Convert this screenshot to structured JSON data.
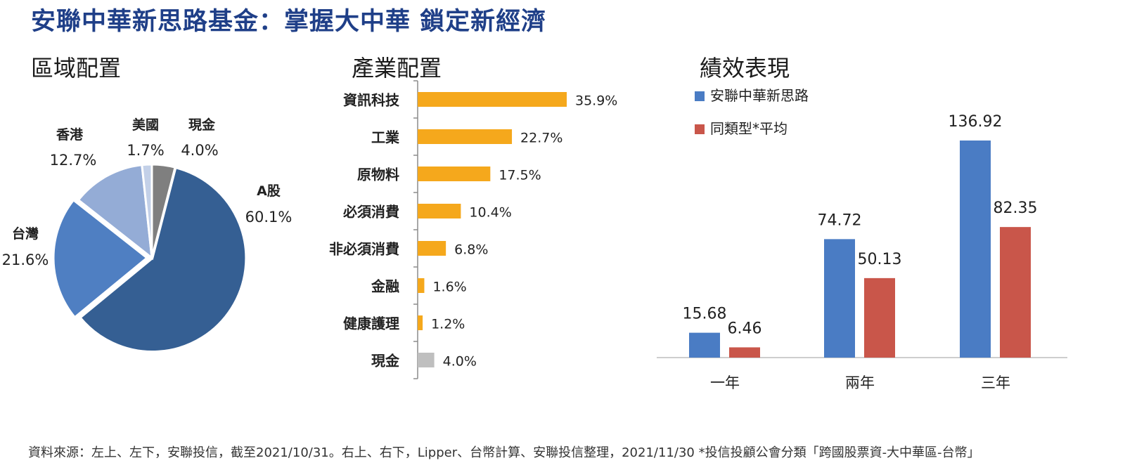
{
  "title": "安聯中華新思路基金：掌握大中華  鎖定新經濟",
  "sections": {
    "region": "區域配置",
    "industry": "產業配置",
    "performance": "績效表現"
  },
  "colors": {
    "title": "#1f3f88",
    "a_share": "#355f93",
    "taiwan": "#4f7fc2",
    "hongkong": "#94acd6",
    "usa": "#c3d0e8",
    "cash": "#7f7f7f",
    "industry_bar": "#f5a81c",
    "industry_cash_bar": "#bfbfbf",
    "fund_series": "#4a7cc4",
    "peer_series": "#c9564a"
  },
  "chart_data": [
    {
      "type": "pie",
      "title": "區域配置",
      "slices": [
        {
          "name": "A股",
          "value": 60.1,
          "label": "60.1%"
        },
        {
          "name": "台灣",
          "value": 21.6,
          "label": "21.6%"
        },
        {
          "name": "香港",
          "value": 12.7,
          "label": "12.7%"
        },
        {
          "name": "美國",
          "value": 1.7,
          "label": "1.7%"
        },
        {
          "name": "現金",
          "value": 4.0,
          "label": "4.0%"
        }
      ]
    },
    {
      "type": "bar",
      "orientation": "horizontal",
      "title": "產業配置",
      "categories": [
        "資訊科技",
        "工業",
        "原物料",
        "必須消費",
        "非必須消費",
        "金融",
        "健康護理",
        "現金"
      ],
      "values": [
        35.9,
        22.7,
        17.5,
        10.4,
        6.8,
        1.6,
        1.2,
        4.0
      ],
      "value_labels": [
        "35.9%",
        "22.7%",
        "17.5%",
        "10.4%",
        "6.8%",
        "1.6%",
        "1.2%",
        "4.0%"
      ]
    },
    {
      "type": "bar",
      "title": "績效表現",
      "categories": [
        "一年",
        "兩年",
        "三年"
      ],
      "series": [
        {
          "name": "安聯中華新思路",
          "values": [
            15.68,
            74.72,
            136.92
          ],
          "value_labels": [
            "15.68",
            "74.72",
            "136.92"
          ]
        },
        {
          "name": "同類型*平均",
          "values": [
            6.46,
            50.13,
            82.35
          ],
          "value_labels": [
            "6.46",
            "50.13",
            "82.35"
          ]
        }
      ],
      "legend": "top-left"
    }
  ],
  "footer": "資料來源：左上、左下，安聯投信，截至2021/10/31。右上、右下，Lipper、台幣計算、安聯投信整理，2021/11/30  *投信投顧公會分類「跨國股票資-大中華區-台幣」"
}
